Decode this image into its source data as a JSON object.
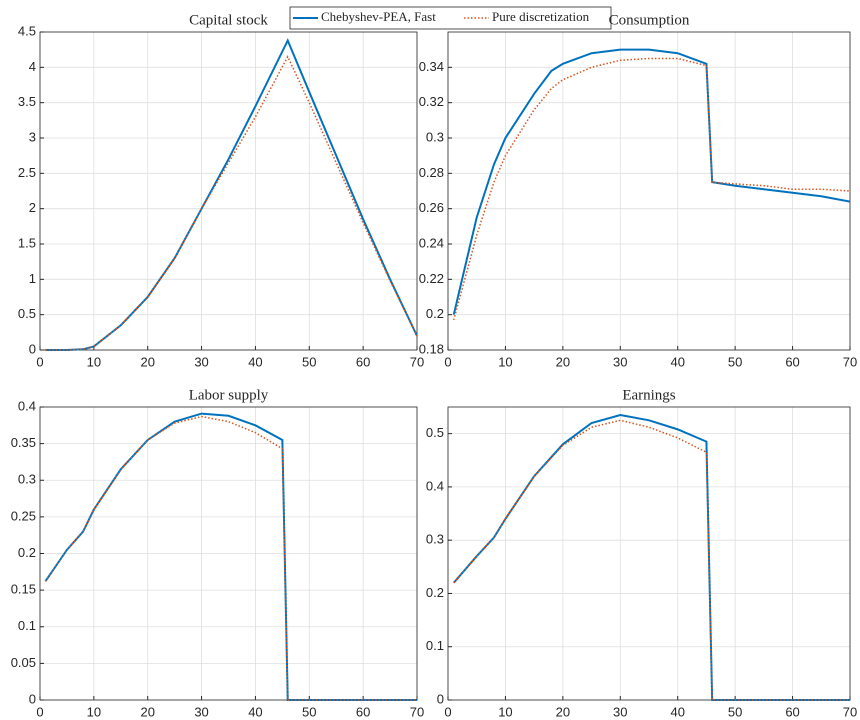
{
  "chart_data": [
    {
      "type": "line",
      "title": "Capital stock",
      "x": [
        1,
        5,
        8,
        10,
        15,
        20,
        25,
        30,
        35,
        40,
        46,
        50,
        55,
        60,
        65,
        70
      ],
      "series": [
        {
          "name": "Chebyshev-PEA, Fast",
          "color": "#0072bd",
          "style": "solid",
          "values": [
            0,
            0,
            0.01,
            0.05,
            0.35,
            0.75,
            1.3,
            2.0,
            2.7,
            3.45,
            4.38,
            3.65,
            2.75,
            1.85,
            1.0,
            0.2
          ]
        },
        {
          "name": "Pure discretization",
          "color": "#d95319",
          "style": "dotted",
          "values": [
            0,
            0,
            0.01,
            0.05,
            0.35,
            0.75,
            1.3,
            2.0,
            2.65,
            3.3,
            4.15,
            3.5,
            2.65,
            1.8,
            0.98,
            0.2
          ]
        }
      ],
      "xlim": [
        0,
        70
      ],
      "xticks": [
        0,
        10,
        20,
        30,
        40,
        50,
        60,
        70
      ],
      "ylim": [
        0,
        4.5
      ],
      "yticks": [
        0,
        0.5,
        1,
        1.5,
        2,
        2.5,
        3,
        3.5,
        4,
        4.5
      ],
      "grid": true
    },
    {
      "type": "line",
      "title": "Consumption",
      "x": [
        1,
        5,
        8,
        10,
        15,
        18,
        20,
        25,
        30,
        35,
        40,
        45,
        46,
        50,
        55,
        60,
        65,
        70
      ],
      "series": [
        {
          "color": "#0072bd",
          "style": "solid",
          "values": [
            0.2,
            0.255,
            0.285,
            0.3,
            0.325,
            0.338,
            0.342,
            0.348,
            0.35,
            0.35,
            0.348,
            0.342,
            0.275,
            0.273,
            0.271,
            0.269,
            0.267,
            0.264
          ]
        },
        {
          "color": "#d95319",
          "style": "dotted",
          "values": [
            0.197,
            0.245,
            0.275,
            0.29,
            0.316,
            0.328,
            0.333,
            0.34,
            0.344,
            0.345,
            0.345,
            0.341,
            0.275,
            0.274,
            0.273,
            0.271,
            0.271,
            0.27
          ]
        }
      ],
      "xlim": [
        0,
        70
      ],
      "xticks": [
        0,
        10,
        20,
        30,
        40,
        50,
        60,
        70
      ],
      "ylim": [
        0.18,
        0.36
      ],
      "yticks": [
        0.18,
        0.2,
        0.22,
        0.24,
        0.26,
        0.28,
        0.3,
        0.32,
        0.34
      ],
      "grid": true
    },
    {
      "type": "line",
      "title": "Labor supply",
      "x": [
        1,
        5,
        8,
        10,
        15,
        20,
        25,
        30,
        35,
        40,
        45,
        46,
        50,
        55,
        60,
        65,
        70
      ],
      "series": [
        {
          "color": "#0072bd",
          "style": "solid",
          "values": [
            0.162,
            0.205,
            0.23,
            0.26,
            0.315,
            0.355,
            0.38,
            0.391,
            0.388,
            0.375,
            0.355,
            0,
            0,
            0,
            0,
            0,
            0
          ]
        },
        {
          "color": "#d95319",
          "style": "dotted",
          "values": [
            0.162,
            0.205,
            0.23,
            0.26,
            0.315,
            0.355,
            0.378,
            0.387,
            0.38,
            0.365,
            0.343,
            0,
            0,
            0,
            0,
            0,
            0
          ]
        }
      ],
      "xlim": [
        0,
        70
      ],
      "xticks": [
        0,
        10,
        20,
        30,
        40,
        50,
        60,
        70
      ],
      "ylim": [
        0,
        0.4
      ],
      "yticks": [
        0,
        0.05,
        0.1,
        0.15,
        0.2,
        0.25,
        0.3,
        0.35,
        0.4
      ],
      "grid": true
    },
    {
      "type": "line",
      "title": "Earnings",
      "x": [
        1,
        5,
        8,
        10,
        15,
        20,
        25,
        30,
        35,
        40,
        45,
        46,
        50,
        55,
        60,
        65,
        70
      ],
      "series": [
        {
          "color": "#0072bd",
          "style": "solid",
          "values": [
            0.22,
            0.27,
            0.305,
            0.34,
            0.42,
            0.48,
            0.52,
            0.535,
            0.525,
            0.508,
            0.485,
            0,
            0,
            0,
            0,
            0,
            0
          ]
        },
        {
          "color": "#d95319",
          "style": "dotted",
          "values": [
            0.22,
            0.27,
            0.305,
            0.34,
            0.42,
            0.478,
            0.512,
            0.525,
            0.512,
            0.492,
            0.465,
            0,
            0,
            0,
            0,
            0,
            0
          ]
        }
      ],
      "xlim": [
        0,
        70
      ],
      "xticks": [
        0,
        10,
        20,
        30,
        40,
        50,
        60,
        70
      ],
      "ylim": [
        0,
        0.55
      ],
      "yticks": [
        0,
        0.1,
        0.2,
        0.3,
        0.4,
        0.5
      ],
      "grid": true
    }
  ]
}
